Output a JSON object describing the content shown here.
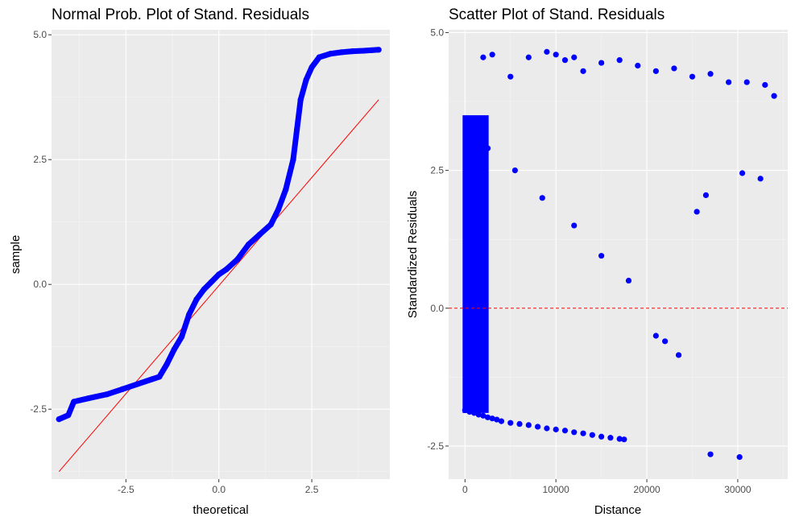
{
  "chart_data": [
    {
      "type": "scatter",
      "title": "Normal Prob. Plot of Stand. Residuals",
      "xlabel": "theoretical",
      "ylabel": "sample",
      "xlim": [
        -4.5,
        4.6
      ],
      "ylim": [
        -3.9,
        5.1
      ],
      "x_ticks": [
        -2.5,
        0.0,
        2.5
      ],
      "x_tick_labels": [
        "-2.5",
        "0.0",
        "2.5"
      ],
      "y_ticks": [
        -2.5,
        0.0,
        2.5,
        5.0
      ],
      "y_tick_labels": [
        "-2.5",
        "0.0",
        "2.5",
        "5.0"
      ],
      "grid": true,
      "point_color": "#0000ff",
      "reference_line": {
        "color": "#ff0000",
        "x": [
          -4.3,
          4.3
        ],
        "y": [
          -3.75,
          3.7
        ]
      },
      "points_x": [
        -4.3,
        -4.05,
        -3.9,
        -3.5,
        -3.0,
        -2.6,
        -2.2,
        -1.8,
        -1.6,
        -1.4,
        -1.2,
        -1.0,
        -0.8,
        -0.6,
        -0.4,
        -0.2,
        0.0,
        0.2,
        0.5,
        0.8,
        1.1,
        1.4,
        1.6,
        1.8,
        2.0,
        2.1,
        2.2,
        2.35,
        2.5,
        2.7,
        3.0,
        3.3,
        3.6,
        3.9,
        4.1,
        4.3
      ],
      "points_y": [
        -2.7,
        -2.62,
        -2.35,
        -2.28,
        -2.2,
        -2.1,
        -2.0,
        -1.9,
        -1.85,
        -1.6,
        -1.3,
        -1.05,
        -0.6,
        -0.3,
        -0.1,
        0.05,
        0.2,
        0.3,
        0.5,
        0.8,
        1.0,
        1.2,
        1.5,
        1.9,
        2.5,
        3.1,
        3.7,
        4.1,
        4.35,
        4.55,
        4.62,
        4.65,
        4.67,
        4.68,
        4.69,
        4.7
      ]
    },
    {
      "type": "scatter",
      "title": "Scatter Plot of Stand. Residuals",
      "xlabel": "Distance",
      "ylabel": "Standardized Residuals",
      "xlim": [
        -1800,
        35500
      ],
      "ylim": [
        -3.1,
        5.05
      ],
      "x_ticks": [
        0,
        10000,
        20000,
        30000
      ],
      "x_tick_labels": [
        "0",
        "10000",
        "20000",
        "30000"
      ],
      "y_ticks": [
        -2.5,
        0.0,
        2.5,
        5.0
      ],
      "y_tick_labels": [
        "-2.5",
        "0.0",
        "2.5",
        "5.0"
      ],
      "grid": true,
      "point_color": "#0000ff",
      "hline": {
        "y": 0,
        "color": "#ff0000",
        "style": "dashed"
      },
      "points_x": [
        0,
        500,
        1000,
        1500,
        2000,
        2500,
        3000,
        3500,
        4000,
        5000,
        6000,
        7000,
        8000,
        9000,
        10000,
        11000,
        12000,
        13000,
        14000,
        15000,
        16000,
        17000,
        17500,
        2000,
        3000,
        5000,
        7000,
        9000,
        10000,
        11000,
        12000,
        13000,
        15000,
        17000,
        19000,
        21000,
        23000,
        25000,
        27000,
        29000,
        31000,
        33000,
        34000,
        25500,
        26500,
        30500,
        32500,
        2500,
        5500,
        8500,
        12000,
        15000,
        18000,
        21000,
        22000,
        23500,
        27000,
        30200
      ],
      "points_y": [
        -1.85,
        -1.88,
        -1.9,
        -1.93,
        -1.95,
        -1.98,
        -2.0,
        -2.02,
        -2.05,
        -2.08,
        -2.1,
        -2.12,
        -2.15,
        -2.18,
        -2.2,
        -2.22,
        -2.25,
        -2.27,
        -2.3,
        -2.33,
        -2.35,
        -2.37,
        -2.38,
        4.55,
        4.6,
        4.2,
        4.55,
        4.65,
        4.6,
        4.5,
        4.55,
        4.3,
        4.45,
        4.5,
        4.4,
        4.3,
        4.35,
        4.2,
        4.25,
        4.1,
        4.1,
        4.05,
        3.85,
        1.75,
        2.05,
        2.45,
        2.35,
        2.9,
        2.5,
        2.0,
        1.5,
        0.95,
        0.5,
        -0.5,
        -0.6,
        -0.85,
        -2.65,
        -2.7
      ]
    }
  ]
}
